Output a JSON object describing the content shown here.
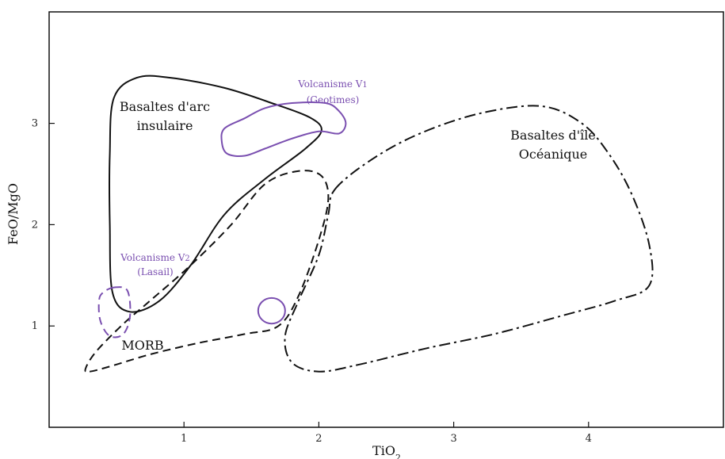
{
  "chart_data": {
    "type": "scatter",
    "xlabel": "TiO2",
    "ylabel": "FeO/MgO",
    "xlim": [
      0,
      5
    ],
    "ylim": [
      0,
      4.1
    ],
    "xticks": [
      "1",
      "2",
      "3",
      "4"
    ],
    "yticks": [
      "1",
      "2",
      "3"
    ],
    "grid": false,
    "colors": {
      "fields": "#111111",
      "volcanism": "#7a4fb0"
    },
    "fields": [
      {
        "name": "Basaltes d'arc insulaire",
        "line": "solid",
        "label_lines": [
          "Basaltes d'arc",
          "insulaire"
        ],
        "outline": [
          [
            0.65,
            3.45
          ],
          [
            0.9,
            3.45
          ],
          [
            1.3,
            3.35
          ],
          [
            1.65,
            3.2
          ],
          [
            1.93,
            3.06
          ],
          [
            2.02,
            2.93
          ],
          [
            1.9,
            2.75
          ],
          [
            1.6,
            2.45
          ],
          [
            1.3,
            2.1
          ],
          [
            1.05,
            1.6
          ],
          [
            0.82,
            1.25
          ],
          [
            0.6,
            1.14
          ],
          [
            0.47,
            1.33
          ],
          [
            0.45,
            2.0
          ],
          [
            0.45,
            2.7
          ],
          [
            0.48,
            3.25
          ]
        ]
      },
      {
        "name": "MORB",
        "line": "dashed",
        "label_lines": [
          "MORB"
        ],
        "outline": [
          [
            0.3,
            0.55
          ],
          [
            0.45,
            0.6
          ],
          [
            0.75,
            0.72
          ],
          [
            1.1,
            0.83
          ],
          [
            1.45,
            0.92
          ],
          [
            1.7,
            1.0
          ],
          [
            1.85,
            1.3
          ],
          [
            2.0,
            1.85
          ],
          [
            2.07,
            2.25
          ],
          [
            2.02,
            2.48
          ],
          [
            1.85,
            2.53
          ],
          [
            1.6,
            2.4
          ],
          [
            1.35,
            2.0
          ],
          [
            1.05,
            1.6
          ],
          [
            0.75,
            1.25
          ],
          [
            0.55,
            1.02
          ],
          [
            0.35,
            0.75
          ],
          [
            0.27,
            0.58
          ]
        ]
      },
      {
        "name": "Basaltes d'île Océanique",
        "line": "dashdot",
        "label_lines": [
          "Basaltes d'île",
          "Océanique"
        ],
        "outline": [
          [
            2.12,
            2.35
          ],
          [
            2.4,
            2.65
          ],
          [
            2.75,
            2.9
          ],
          [
            3.2,
            3.1
          ],
          [
            3.65,
            3.17
          ],
          [
            3.95,
            3.0
          ],
          [
            4.15,
            2.7
          ],
          [
            4.32,
            2.3
          ],
          [
            4.45,
            1.8
          ],
          [
            4.45,
            1.4
          ],
          [
            4.2,
            1.25
          ],
          [
            3.8,
            1.1
          ],
          [
            3.3,
            0.92
          ],
          [
            2.8,
            0.78
          ],
          [
            2.3,
            0.62
          ],
          [
            2.0,
            0.55
          ],
          [
            1.8,
            0.64
          ],
          [
            1.75,
            0.9
          ],
          [
            1.85,
            1.25
          ],
          [
            2.0,
            1.7
          ],
          [
            2.07,
            2.1
          ]
        ]
      }
    ],
    "volcanism": [
      {
        "name": "Volcanisme V1",
        "label_lines": [
          "Volcanisme V1",
          "(Geotimes)"
        ],
        "line": "solid",
        "outline": [
          [
            1.3,
            2.95
          ],
          [
            1.45,
            3.05
          ],
          [
            1.6,
            3.15
          ],
          [
            1.8,
            3.2
          ],
          [
            2.05,
            3.2
          ],
          [
            2.15,
            3.12
          ],
          [
            2.2,
            3.0
          ],
          [
            2.15,
            2.9
          ],
          [
            2.0,
            2.92
          ],
          [
            1.8,
            2.85
          ],
          [
            1.6,
            2.75
          ],
          [
            1.45,
            2.68
          ],
          [
            1.32,
            2.7
          ],
          [
            1.28,
            2.82
          ]
        ]
      },
      {
        "name": "Volcanisme V2",
        "label_lines": [
          "Volcanisme V2",
          "(Lasail)"
        ],
        "line": "dashed",
        "outline": [
          [
            0.48,
            1.38
          ],
          [
            0.58,
            1.35
          ],
          [
            0.6,
            1.1
          ],
          [
            0.55,
            0.92
          ],
          [
            0.45,
            0.9
          ],
          [
            0.38,
            1.05
          ],
          [
            0.37,
            1.25
          ],
          [
            0.4,
            1.33
          ]
        ]
      },
      {
        "name": "small circle",
        "label_lines": [],
        "line": "solid",
        "circle": {
          "cx": 1.65,
          "cy": 1.15,
          "r": 0.1
        }
      }
    ]
  }
}
